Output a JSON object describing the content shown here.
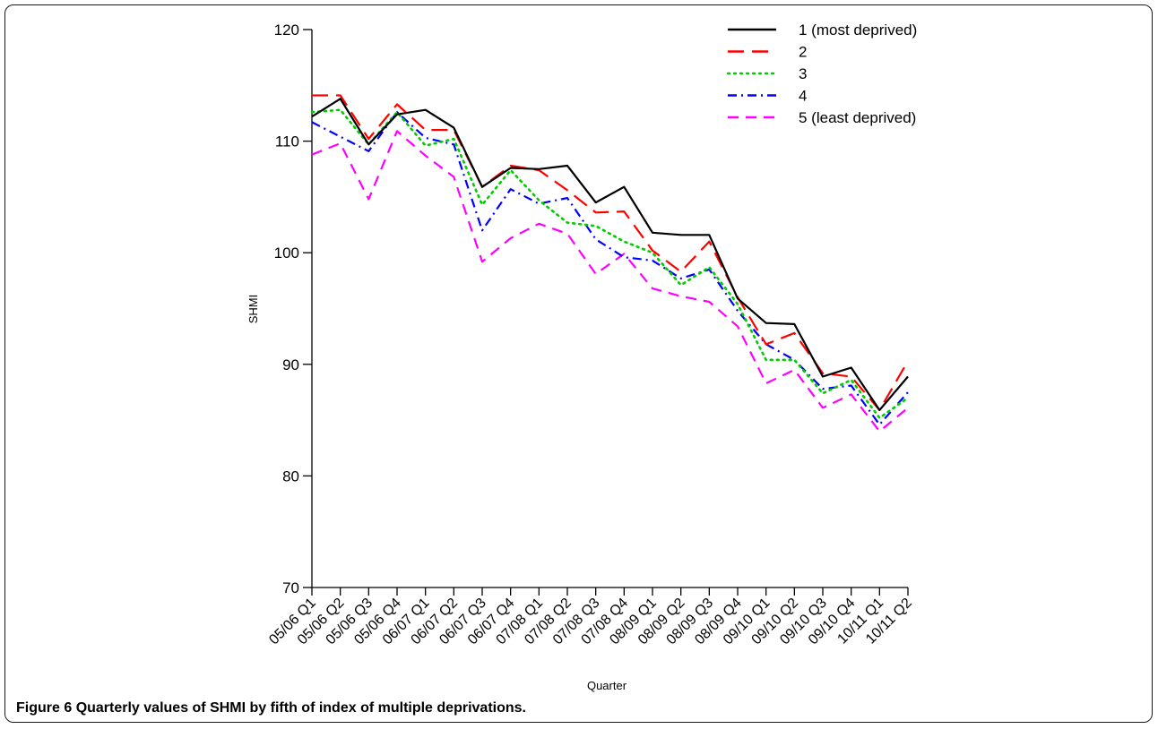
{
  "figure": {
    "label": "Figure 6",
    "caption": "Quarterly values of SHMI by fifth of index of multiple deprivations."
  },
  "chart_data": {
    "type": "line",
    "title": "",
    "xlabel": "Quarter",
    "ylabel": "SHMI",
    "ylim": [
      70,
      120
    ],
    "yticks": [
      70,
      80,
      90,
      100,
      110,
      120
    ],
    "grid": false,
    "legend_position": "top-right",
    "categories": [
      "05/06 Q1",
      "05/06 Q2",
      "05/06 Q3",
      "05/06 Q4",
      "06/07 Q1",
      "06/07 Q2",
      "06/07 Q3",
      "06/07 Q4",
      "07/08 Q1",
      "07/08 Q2",
      "07/08 Q3",
      "07/08 Q4",
      "08/09 Q1",
      "08/09 Q2",
      "08/09 Q3",
      "08/09 Q4",
      "09/10 Q1",
      "09/10 Q2",
      "09/10 Q3",
      "09/10 Q4",
      "10/11 Q1",
      "10/11 Q2"
    ],
    "series": [
      {
        "name": "1 (most deprived)",
        "color": "#000000",
        "dash": "solid",
        "values": [
          112.2,
          113.8,
          109.7,
          112.4,
          112.8,
          111.2,
          105.9,
          107.6,
          107.5,
          107.8,
          104.5,
          105.9,
          101.8,
          101.6,
          101.6,
          95.9,
          93.7,
          93.6,
          88.9,
          89.7,
          85.9,
          88.9
        ]
      },
      {
        "name": "2",
        "color": "#ff0000",
        "dash": "long",
        "values": [
          114.1,
          114.1,
          110.2,
          113.3,
          111.0,
          111.0,
          105.9,
          107.8,
          107.4,
          105.6,
          103.6,
          103.7,
          100.2,
          98.3,
          101.0,
          96.0,
          91.8,
          92.8,
          89.2,
          88.9,
          85.9,
          90.3
        ]
      },
      {
        "name": "3",
        "color": "#00cc00",
        "dash": "dot",
        "values": [
          112.6,
          112.8,
          109.7,
          112.6,
          109.6,
          110.2,
          104.3,
          107.4,
          104.7,
          102.7,
          102.4,
          101.0,
          100.0,
          97.1,
          98.7,
          95.4,
          90.4,
          90.4,
          87.4,
          88.6,
          85.2,
          87.0
        ]
      },
      {
        "name": "4",
        "color": "#0000ff",
        "dash": "dashdot",
        "values": [
          111.7,
          110.4,
          109.1,
          112.6,
          110.3,
          109.7,
          102.0,
          105.7,
          104.4,
          104.9,
          101.2,
          99.6,
          99.3,
          97.7,
          98.5,
          94.8,
          91.8,
          90.4,
          87.8,
          88.1,
          84.6,
          87.5
        ]
      },
      {
        "name": "5 (least deprived)",
        "color": "#ff00ff",
        "dash": "medium",
        "values": [
          108.8,
          109.8,
          104.8,
          110.9,
          108.7,
          106.8,
          99.2,
          101.3,
          102.6,
          101.7,
          98.1,
          99.9,
          96.8,
          96.1,
          95.6,
          93.4,
          88.3,
          89.5,
          86.1,
          87.3,
          84.0,
          86.1
        ]
      }
    ]
  }
}
